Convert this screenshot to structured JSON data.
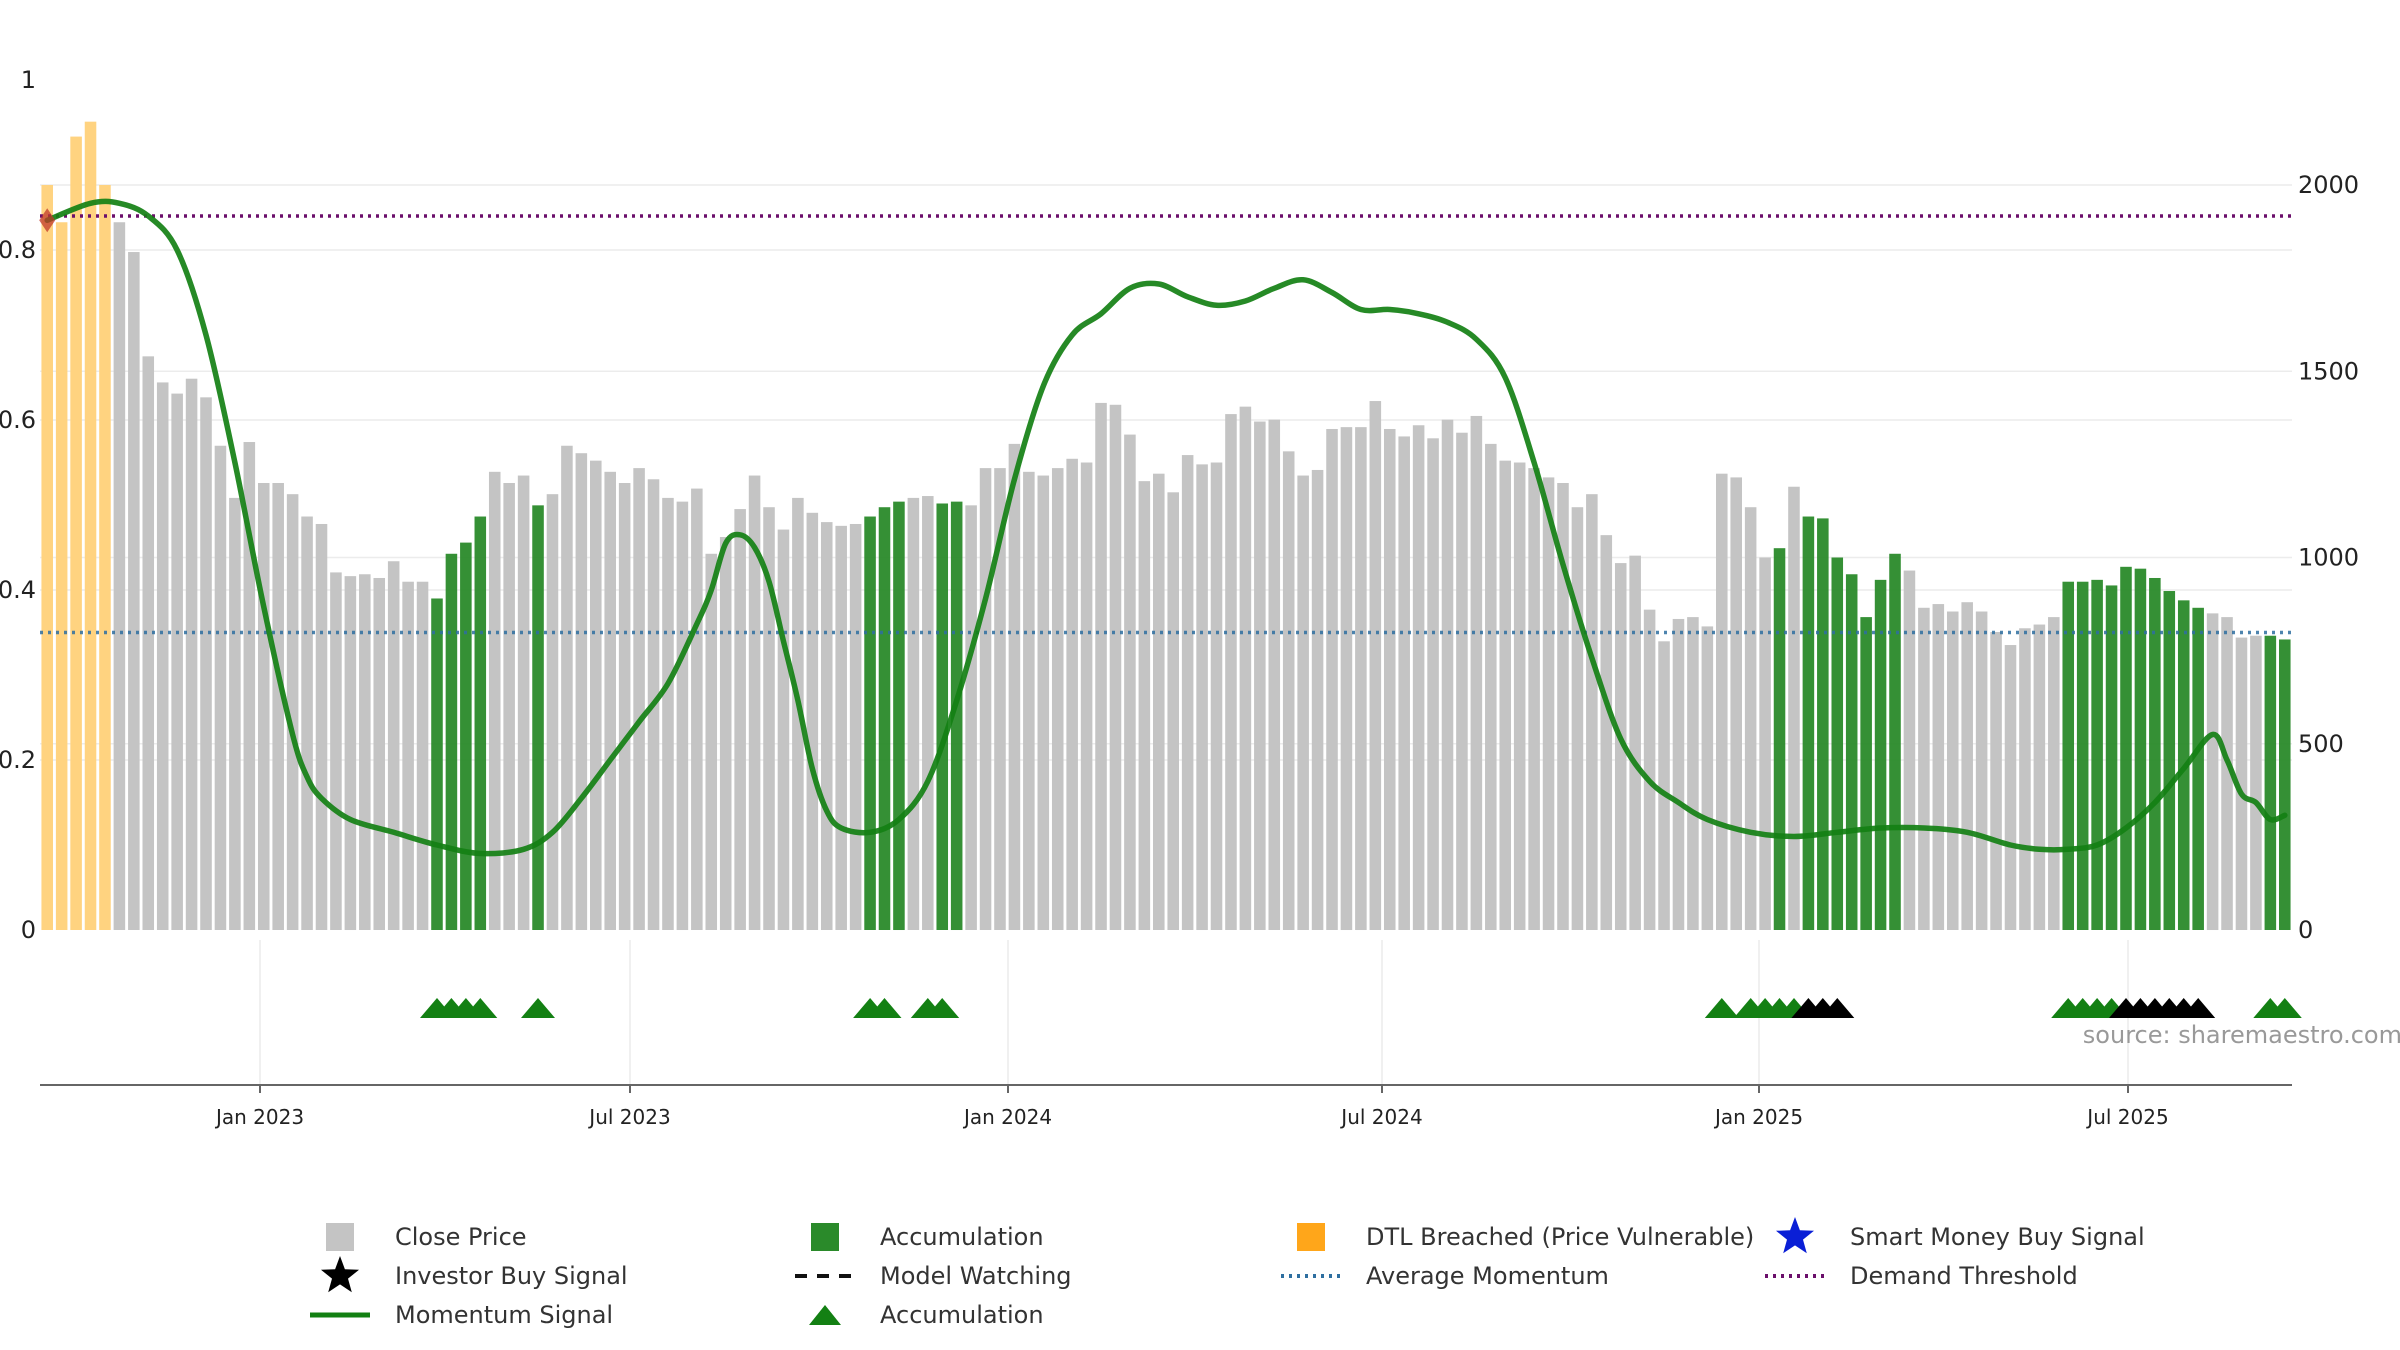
{
  "chart_data": {
    "type": "bar",
    "source": "source: sharemaestro.com",
    "left_axis": {
      "ylim": [
        0,
        1
      ],
      "ticks": [
        "0",
        "0.2",
        "0.4",
        "0.6",
        "0.8",
        "1"
      ]
    },
    "right_axis": {
      "ylim": [
        0,
        2280
      ],
      "ticks": [
        "0",
        "500",
        "1000",
        "1500",
        "2000"
      ]
    },
    "x_ticks": [
      "Jan 2023",
      "Jul 2023",
      "Jan 2024",
      "Jul 2024",
      "Jan 2025",
      "Jul 2025"
    ],
    "bars": [
      {
        "v": 2000,
        "c": "dtl"
      },
      {
        "v": 1900,
        "c": "dtl"
      },
      {
        "v": 2130,
        "c": "dtl"
      },
      {
        "v": 2170,
        "c": "dtl"
      },
      {
        "v": 2000,
        "c": "dtl"
      },
      {
        "v": 1900,
        "c": "close"
      },
      {
        "v": 1820,
        "c": "close"
      },
      {
        "v": 1540,
        "c": "close"
      },
      {
        "v": 1470,
        "c": "close"
      },
      {
        "v": 1440,
        "c": "close"
      },
      {
        "v": 1480,
        "c": "close"
      },
      {
        "v": 1430,
        "c": "close"
      },
      {
        "v": 1300,
        "c": "close"
      },
      {
        "v": 1160,
        "c": "close"
      },
      {
        "v": 1310,
        "c": "close"
      },
      {
        "v": 1200,
        "c": "close"
      },
      {
        "v": 1200,
        "c": "close"
      },
      {
        "v": 1170,
        "c": "close"
      },
      {
        "v": 1110,
        "c": "close"
      },
      {
        "v": 1090,
        "c": "close"
      },
      {
        "v": 960,
        "c": "close"
      },
      {
        "v": 950,
        "c": "close"
      },
      {
        "v": 955,
        "c": "close"
      },
      {
        "v": 945,
        "c": "close"
      },
      {
        "v": 990,
        "c": "close"
      },
      {
        "v": 935,
        "c": "close"
      },
      {
        "v": 935,
        "c": "close"
      },
      {
        "v": 890,
        "c": "acc"
      },
      {
        "v": 1010,
        "c": "acc"
      },
      {
        "v": 1040,
        "c": "acc"
      },
      {
        "v": 1110,
        "c": "acc"
      },
      {
        "v": 1230,
        "c": "close"
      },
      {
        "v": 1200,
        "c": "close"
      },
      {
        "v": 1220,
        "c": "close"
      },
      {
        "v": 1140,
        "c": "acc"
      },
      {
        "v": 1170,
        "c": "close"
      },
      {
        "v": 1300,
        "c": "close"
      },
      {
        "v": 1280,
        "c": "close"
      },
      {
        "v": 1260,
        "c": "close"
      },
      {
        "v": 1230,
        "c": "close"
      },
      {
        "v": 1200,
        "c": "close"
      },
      {
        "v": 1240,
        "c": "close"
      },
      {
        "v": 1210,
        "c": "close"
      },
      {
        "v": 1160,
        "c": "close"
      },
      {
        "v": 1150,
        "c": "close"
      },
      {
        "v": 1185,
        "c": "close"
      },
      {
        "v": 1010,
        "c": "close"
      },
      {
        "v": 1055,
        "c": "close"
      },
      {
        "v": 1130,
        "c": "close"
      },
      {
        "v": 1220,
        "c": "close"
      },
      {
        "v": 1135,
        "c": "close"
      },
      {
        "v": 1075,
        "c": "close"
      },
      {
        "v": 1160,
        "c": "close"
      },
      {
        "v": 1120,
        "c": "close"
      },
      {
        "v": 1095,
        "c": "close"
      },
      {
        "v": 1085,
        "c": "close"
      },
      {
        "v": 1090,
        "c": "close"
      },
      {
        "v": 1110,
        "c": "acc"
      },
      {
        "v": 1135,
        "c": "acc"
      },
      {
        "v": 1150,
        "c": "acc"
      },
      {
        "v": 1160,
        "c": "close"
      },
      {
        "v": 1165,
        "c": "close"
      },
      {
        "v": 1145,
        "c": "acc"
      },
      {
        "v": 1150,
        "c": "acc"
      },
      {
        "v": 1140,
        "c": "close"
      },
      {
        "v": 1240,
        "c": "close"
      },
      {
        "v": 1240,
        "c": "close"
      },
      {
        "v": 1305,
        "c": "close"
      },
      {
        "v": 1230,
        "c": "close"
      },
      {
        "v": 1220,
        "c": "close"
      },
      {
        "v": 1240,
        "c": "close"
      },
      {
        "v": 1265,
        "c": "close"
      },
      {
        "v": 1255,
        "c": "close"
      },
      {
        "v": 1415,
        "c": "close"
      },
      {
        "v": 1410,
        "c": "close"
      },
      {
        "v": 1330,
        "c": "close"
      },
      {
        "v": 1205,
        "c": "close"
      },
      {
        "v": 1225,
        "c": "close"
      },
      {
        "v": 1175,
        "c": "close"
      },
      {
        "v": 1275,
        "c": "close"
      },
      {
        "v": 1250,
        "c": "close"
      },
      {
        "v": 1255,
        "c": "close"
      },
      {
        "v": 1385,
        "c": "close"
      },
      {
        "v": 1405,
        "c": "close"
      },
      {
        "v": 1365,
        "c": "close"
      },
      {
        "v": 1370,
        "c": "close"
      },
      {
        "v": 1285,
        "c": "close"
      },
      {
        "v": 1220,
        "c": "close"
      },
      {
        "v": 1235,
        "c": "close"
      },
      {
        "v": 1345,
        "c": "close"
      },
      {
        "v": 1350,
        "c": "close"
      },
      {
        "v": 1350,
        "c": "close"
      },
      {
        "v": 1420,
        "c": "close"
      },
      {
        "v": 1345,
        "c": "close"
      },
      {
        "v": 1325,
        "c": "close"
      },
      {
        "v": 1355,
        "c": "close"
      },
      {
        "v": 1320,
        "c": "close"
      },
      {
        "v": 1370,
        "c": "close"
      },
      {
        "v": 1335,
        "c": "close"
      },
      {
        "v": 1380,
        "c": "close"
      },
      {
        "v": 1305,
        "c": "close"
      },
      {
        "v": 1260,
        "c": "close"
      },
      {
        "v": 1255,
        "c": "close"
      },
      {
        "v": 1240,
        "c": "close"
      },
      {
        "v": 1215,
        "c": "close"
      },
      {
        "v": 1200,
        "c": "close"
      },
      {
        "v": 1135,
        "c": "close"
      },
      {
        "v": 1170,
        "c": "close"
      },
      {
        "v": 1060,
        "c": "close"
      },
      {
        "v": 985,
        "c": "close"
      },
      {
        "v": 1005,
        "c": "close"
      },
      {
        "v": 860,
        "c": "close"
      },
      {
        "v": 775,
        "c": "close"
      },
      {
        "v": 835,
        "c": "close"
      },
      {
        "v": 840,
        "c": "close"
      },
      {
        "v": 815,
        "c": "close"
      },
      {
        "v": 1225,
        "c": "close"
      },
      {
        "v": 1215,
        "c": "close"
      },
      {
        "v": 1135,
        "c": "close"
      },
      {
        "v": 1000,
        "c": "close"
      },
      {
        "v": 1025,
        "c": "acc"
      },
      {
        "v": 1190,
        "c": "close"
      },
      {
        "v": 1110,
        "c": "acc"
      },
      {
        "v": 1105,
        "c": "acc"
      },
      {
        "v": 1000,
        "c": "acc"
      },
      {
        "v": 955,
        "c": "acc"
      },
      {
        "v": 840,
        "c": "acc"
      },
      {
        "v": 940,
        "c": "acc"
      },
      {
        "v": 1010,
        "c": "acc"
      },
      {
        "v": 965,
        "c": "close"
      },
      {
        "v": 865,
        "c": "close"
      },
      {
        "v": 875,
        "c": "close"
      },
      {
        "v": 855,
        "c": "close"
      },
      {
        "v": 880,
        "c": "close"
      },
      {
        "v": 855,
        "c": "close"
      },
      {
        "v": 800,
        "c": "close"
      },
      {
        "v": 765,
        "c": "close"
      },
      {
        "v": 810,
        "c": "close"
      },
      {
        "v": 820,
        "c": "close"
      },
      {
        "v": 840,
        "c": "close"
      },
      {
        "v": 935,
        "c": "acc"
      },
      {
        "v": 935,
        "c": "acc"
      },
      {
        "v": 940,
        "c": "acc"
      },
      {
        "v": 925,
        "c": "acc"
      },
      {
        "v": 975,
        "c": "acc"
      },
      {
        "v": 970,
        "c": "acc"
      },
      {
        "v": 945,
        "c": "acc"
      },
      {
        "v": 910,
        "c": "acc"
      },
      {
        "v": 885,
        "c": "acc"
      },
      {
        "v": 865,
        "c": "acc"
      },
      {
        "v": 850,
        "c": "close"
      },
      {
        "v": 840,
        "c": "close"
      },
      {
        "v": 785,
        "c": "close"
      },
      {
        "v": 790,
        "c": "close"
      },
      {
        "v": 790,
        "c": "acc"
      },
      {
        "v": 780,
        "c": "acc"
      }
    ],
    "momentum": [
      [
        0,
        0.835
      ],
      [
        3,
        0.855
      ],
      [
        5,
        0.855
      ],
      [
        7,
        0.84
      ],
      [
        9,
        0.8
      ],
      [
        11,
        0.7
      ],
      [
        13,
        0.55
      ],
      [
        15,
        0.38
      ],
      [
        17,
        0.23
      ],
      [
        18,
        0.18
      ],
      [
        19,
        0.155
      ],
      [
        21,
        0.13
      ],
      [
        24,
        0.115
      ],
      [
        27,
        0.1
      ],
      [
        30,
        0.09
      ],
      [
        33,
        0.095
      ],
      [
        35,
        0.115
      ],
      [
        37,
        0.155
      ],
      [
        39,
        0.2
      ],
      [
        41,
        0.245
      ],
      [
        43,
        0.29
      ],
      [
        45,
        0.36
      ],
      [
        46,
        0.4
      ],
      [
        47,
        0.455
      ],
      [
        48,
        0.465
      ],
      [
        49,
        0.45
      ],
      [
        50,
        0.41
      ],
      [
        51,
        0.34
      ],
      [
        52,
        0.27
      ],
      [
        53,
        0.19
      ],
      [
        54,
        0.14
      ],
      [
        55,
        0.12
      ],
      [
        57,
        0.115
      ],
      [
        59,
        0.13
      ],
      [
        61,
        0.175
      ],
      [
        63,
        0.27
      ],
      [
        65,
        0.39
      ],
      [
        67,
        0.53
      ],
      [
        69,
        0.64
      ],
      [
        71,
        0.7
      ],
      [
        73,
        0.725
      ],
      [
        75,
        0.755
      ],
      [
        77,
        0.76
      ],
      [
        79,
        0.745
      ],
      [
        81,
        0.735
      ],
      [
        83,
        0.74
      ],
      [
        85,
        0.755
      ],
      [
        87,
        0.765
      ],
      [
        89,
        0.75
      ],
      [
        91,
        0.73
      ],
      [
        93,
        0.73
      ],
      [
        95,
        0.725
      ],
      [
        97,
        0.715
      ],
      [
        99,
        0.695
      ],
      [
        101,
        0.65
      ],
      [
        103,
        0.55
      ],
      [
        105,
        0.43
      ],
      [
        107,
        0.32
      ],
      [
        109,
        0.225
      ],
      [
        111,
        0.175
      ],
      [
        113,
        0.15
      ],
      [
        115,
        0.13
      ],
      [
        118,
        0.115
      ],
      [
        121,
        0.11
      ],
      [
        124,
        0.115
      ],
      [
        127,
        0.12
      ],
      [
        130,
        0.12
      ],
      [
        133,
        0.115
      ],
      [
        136,
        0.1
      ],
      [
        138,
        0.095
      ],
      [
        140,
        0.095
      ],
      [
        142,
        0.1
      ],
      [
        144,
        0.12
      ],
      [
        146,
        0.15
      ],
      [
        148,
        0.19
      ],
      [
        150,
        0.23
      ],
      [
        151,
        0.2
      ],
      [
        152,
        0.16
      ],
      [
        153,
        0.15
      ],
      [
        154,
        0.13
      ],
      [
        155,
        0.135
      ]
    ],
    "average_momentum": 0.35,
    "demand_threshold": 0.84,
    "signals": [
      {
        "i": 27,
        "c": "acc"
      },
      {
        "i": 28,
        "c": "acc"
      },
      {
        "i": 29,
        "c": "acc"
      },
      {
        "i": 30,
        "c": "acc"
      },
      {
        "i": 34,
        "c": "acc"
      },
      {
        "i": 57,
        "c": "acc"
      },
      {
        "i": 58,
        "c": "acc"
      },
      {
        "i": 61,
        "c": "acc"
      },
      {
        "i": 62,
        "c": "acc"
      },
      {
        "i": 116,
        "c": "acc"
      },
      {
        "i": 118,
        "c": "acc"
      },
      {
        "i": 119,
        "c": "acc"
      },
      {
        "i": 120,
        "c": "acc"
      },
      {
        "i": 121,
        "c": "acc"
      },
      {
        "i": 122,
        "c": "inv"
      },
      {
        "i": 123,
        "c": "inv"
      },
      {
        "i": 124,
        "c": "inv"
      },
      {
        "i": 140,
        "c": "acc"
      },
      {
        "i": 141,
        "c": "acc"
      },
      {
        "i": 142,
        "c": "acc"
      },
      {
        "i": 143,
        "c": "acc"
      },
      {
        "i": 144,
        "c": "inv"
      },
      {
        "i": 145,
        "c": "inv"
      },
      {
        "i": 146,
        "c": "inv"
      },
      {
        "i": 147,
        "c": "inv"
      },
      {
        "i": 148,
        "c": "inv"
      },
      {
        "i": 149,
        "c": "inv"
      },
      {
        "i": 154,
        "c": "acc"
      },
      {
        "i": 155,
        "c": "acc"
      }
    ],
    "legend": [
      {
        "label": "Close Price",
        "marker": "gray-square"
      },
      {
        "label": "Accumulation",
        "marker": "green-square"
      },
      {
        "label": "DTL Breached (Price Vulnerable)",
        "marker": "orange-square"
      },
      {
        "label": "Smart Money Buy Signal",
        "marker": "blue-star"
      },
      {
        "label": "Investor Buy Signal",
        "marker": "black-star"
      },
      {
        "label": "Model Watching",
        "marker": "black-dash"
      },
      {
        "label": "Average Momentum",
        "marker": "blue-dotted"
      },
      {
        "label": "Demand Threshold",
        "marker": "purple-dotted"
      },
      {
        "label": "Momentum Signal",
        "marker": "green-line"
      },
      {
        "label": "Accumulation",
        "marker": "green-triangle"
      }
    ],
    "colors": {
      "close": "#c4c4c4",
      "acc": "#2a8a2a",
      "dtl": "#ffd380",
      "momentum": "#138013",
      "avg": "#2e6fa0",
      "threshold": "#6b0f6b",
      "inv": "#000000",
      "smart": "#0a1fd6"
    }
  }
}
